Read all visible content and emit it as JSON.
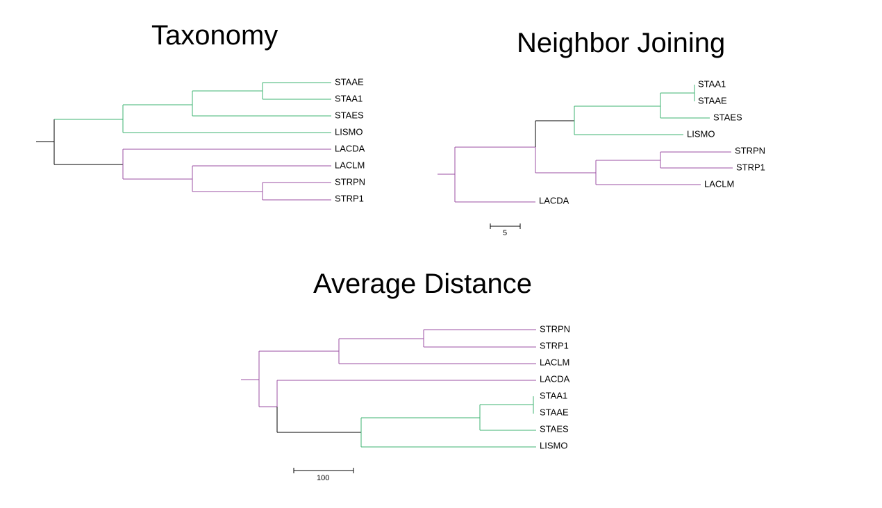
{
  "colors": {
    "green": "#3cb371",
    "purple": "#9b4fa3",
    "black": "#000000"
  },
  "trees": [
    {
      "title": "Taxonomy",
      "leaves": [
        "STAAE",
        "STAA1",
        "STAES",
        "LISMO",
        "LACDA",
        "LACLM",
        "STRPN",
        "STRP1"
      ]
    },
    {
      "title": "Neighbor Joining",
      "leaves": [
        "STAA1",
        "STAAE",
        "STAES",
        "LISMO",
        "STRPN",
        "STRP1",
        "LACLM",
        "LACDA"
      ],
      "scale_label": "5"
    },
    {
      "title": "Average Distance",
      "leaves": [
        "STRPN",
        "STRP1",
        "LACLM",
        "LACDA",
        "STAA1",
        "STAAE",
        "STAES",
        "LISMO"
      ],
      "scale_label": "100"
    }
  ]
}
